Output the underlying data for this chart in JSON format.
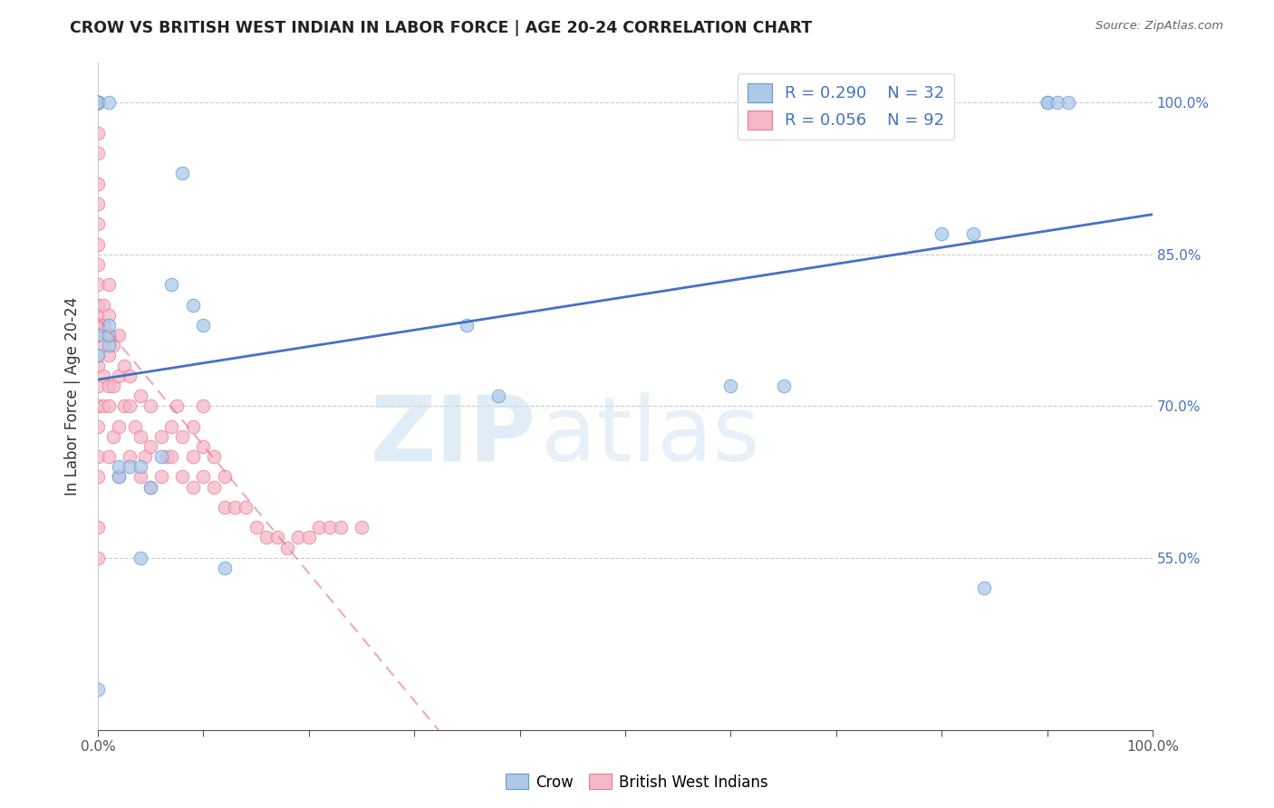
{
  "title": "CROW VS BRITISH WEST INDIAN IN LABOR FORCE | AGE 20-24 CORRELATION CHART",
  "source": "Source: ZipAtlas.com",
  "ylabel": "In Labor Force | Age 20-24",
  "xlim": [
    0.0,
    1.0
  ],
  "ylim": [
    0.38,
    1.04
  ],
  "x_ticks": [
    0.0,
    0.1,
    0.2,
    0.3,
    0.4,
    0.5,
    0.6,
    0.7,
    0.8,
    0.9,
    1.0
  ],
  "y_ticks": [
    0.55,
    0.7,
    0.85,
    1.0
  ],
  "y_tick_labels": [
    "55.0%",
    "70.0%",
    "85.0%",
    "100.0%"
  ],
  "crow_color": "#adc9e8",
  "bwi_color": "#f5b8c8",
  "crow_edge_color": "#5b9bd5",
  "bwi_edge_color": "#e87a96",
  "crow_line_color": "#4472c4",
  "bwi_line_color": "#e87a96",
  "crow_R": 0.29,
  "crow_N": 32,
  "bwi_R": 0.056,
  "bwi_N": 92,
  "watermark_zip": "ZIP",
  "watermark_atlas": "atlas",
  "crow_scatter_x": [
    0.0,
    0.0,
    0.0,
    0.0,
    0.0,
    0.01,
    0.01,
    0.01,
    0.01,
    0.02,
    0.02,
    0.03,
    0.04,
    0.04,
    0.05,
    0.06,
    0.07,
    0.08,
    0.09,
    0.1,
    0.12,
    0.35,
    0.38,
    0.6,
    0.65,
    0.8,
    0.83,
    0.84,
    0.9,
    0.9,
    0.91,
    0.92
  ],
  "crow_scatter_y": [
    0.42,
    0.75,
    0.77,
    1.0,
    1.0,
    0.76,
    0.77,
    0.78,
    1.0,
    0.63,
    0.64,
    0.64,
    0.55,
    0.64,
    0.62,
    0.65,
    0.82,
    0.93,
    0.8,
    0.78,
    0.54,
    0.78,
    0.71,
    0.72,
    0.72,
    0.87,
    0.87,
    0.52,
    1.0,
    1.0,
    1.0,
    1.0
  ],
  "bwi_scatter_x": [
    0.0,
    0.0,
    0.0,
    0.0,
    0.0,
    0.0,
    0.0,
    0.0,
    0.0,
    0.0,
    0.0,
    0.0,
    0.0,
    0.0,
    0.0,
    0.0,
    0.0,
    0.0,
    0.0,
    0.0,
    0.0,
    0.0,
    0.0,
    0.0,
    0.0,
    0.0,
    0.0,
    0.0,
    0.0,
    0.0,
    0.005,
    0.005,
    0.005,
    0.005,
    0.005,
    0.01,
    0.01,
    0.01,
    0.01,
    0.01,
    0.01,
    0.01,
    0.015,
    0.015,
    0.015,
    0.02,
    0.02,
    0.02,
    0.02,
    0.025,
    0.025,
    0.03,
    0.03,
    0.03,
    0.035,
    0.04,
    0.04,
    0.04,
    0.045,
    0.05,
    0.05,
    0.05,
    0.06,
    0.06,
    0.065,
    0.07,
    0.07,
    0.075,
    0.08,
    0.08,
    0.09,
    0.09,
    0.09,
    0.1,
    0.1,
    0.1,
    0.11,
    0.11,
    0.12,
    0.12,
    0.13,
    0.14,
    0.15,
    0.16,
    0.17,
    0.18,
    0.19,
    0.2,
    0.21,
    0.22,
    0.23,
    0.25
  ],
  "bwi_scatter_y": [
    0.55,
    0.58,
    0.63,
    0.65,
    0.68,
    0.7,
    0.72,
    0.74,
    0.75,
    0.77,
    0.78,
    0.79,
    0.8,
    0.82,
    0.84,
    0.86,
    0.88,
    0.9,
    0.92,
    0.95,
    0.97,
    1.0,
    1.0,
    1.0,
    1.0,
    1.0,
    1.0,
    1.0,
    1.0,
    1.0,
    0.7,
    0.73,
    0.76,
    0.78,
    0.8,
    0.65,
    0.7,
    0.72,
    0.75,
    0.77,
    0.79,
    0.82,
    0.67,
    0.72,
    0.76,
    0.63,
    0.68,
    0.73,
    0.77,
    0.7,
    0.74,
    0.65,
    0.7,
    0.73,
    0.68,
    0.63,
    0.67,
    0.71,
    0.65,
    0.62,
    0.66,
    0.7,
    0.63,
    0.67,
    0.65,
    0.65,
    0.68,
    0.7,
    0.63,
    0.67,
    0.62,
    0.65,
    0.68,
    0.63,
    0.66,
    0.7,
    0.62,
    0.65,
    0.6,
    0.63,
    0.6,
    0.6,
    0.58,
    0.57,
    0.57,
    0.56,
    0.57,
    0.57,
    0.58,
    0.58,
    0.58,
    0.58
  ]
}
